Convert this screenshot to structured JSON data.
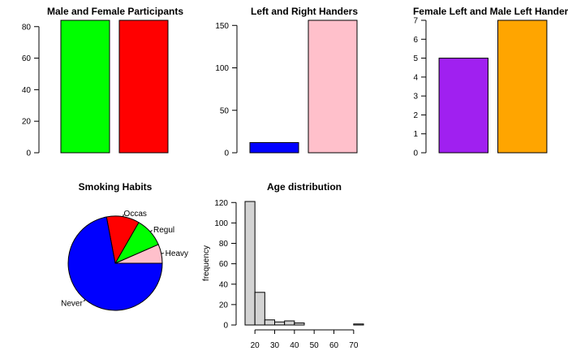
{
  "chart_data": [
    {
      "type": "bar",
      "title": "Male and Female Participants",
      "categories": [
        "",
        ""
      ],
      "values": [
        84,
        84
      ],
      "colors": [
        "#00ff00",
        "#ff0000"
      ],
      "ylim": [
        0,
        84
      ],
      "yticks": [
        0,
        20,
        40,
        60,
        80
      ]
    },
    {
      "type": "bar",
      "title": "Left and Right Handers",
      "categories": [
        "",
        ""
      ],
      "values": [
        12,
        156
      ],
      "colors": [
        "#0000ff",
        "#ffc0cb"
      ],
      "ylim": [
        0,
        156
      ],
      "yticks": [
        0,
        50,
        100,
        150
      ]
    },
    {
      "type": "bar",
      "title": "Female Left and Male Left Handers",
      "categories": [
        "",
        ""
      ],
      "values": [
        5,
        7
      ],
      "colors": [
        "#a020f0",
        "#ffa500"
      ],
      "ylim": [
        0,
        7
      ],
      "yticks": [
        0,
        1,
        2,
        3,
        4,
        5,
        6,
        7
      ]
    },
    {
      "type": "pie",
      "title": "Smoking Habits",
      "labels": [
        "Heavy",
        "Regul",
        "Occas",
        "Never"
      ],
      "values": [
        11,
        17,
        19,
        121
      ],
      "colors": [
        "#ffc0cb",
        "#00ff00",
        "#ff0000",
        "#0000ff"
      ],
      "start": "east",
      "direction": "counterclockwise"
    },
    {
      "type": "bar",
      "subtype": "histogram",
      "title": "Age distribution",
      "ylabel": "frequency",
      "bins": [
        [
          15,
          20
        ],
        [
          20,
          25
        ],
        [
          25,
          30
        ],
        [
          30,
          35
        ],
        [
          35,
          40
        ],
        [
          40,
          45
        ],
        [
          45,
          50
        ],
        [
          50,
          55
        ],
        [
          55,
          60
        ],
        [
          60,
          65
        ],
        [
          65,
          70
        ],
        [
          70,
          75
        ]
      ],
      "values": [
        121,
        32,
        5,
        3,
        4,
        2,
        0,
        0,
        0,
        0,
        0,
        1
      ],
      "color": "#d3d3d3",
      "xlim": [
        15,
        75
      ],
      "ylim": [
        0,
        121
      ],
      "xticks": [
        20,
        30,
        40,
        50,
        60,
        70
      ],
      "yticks": [
        0,
        20,
        40,
        60,
        80,
        100,
        120
      ]
    }
  ]
}
